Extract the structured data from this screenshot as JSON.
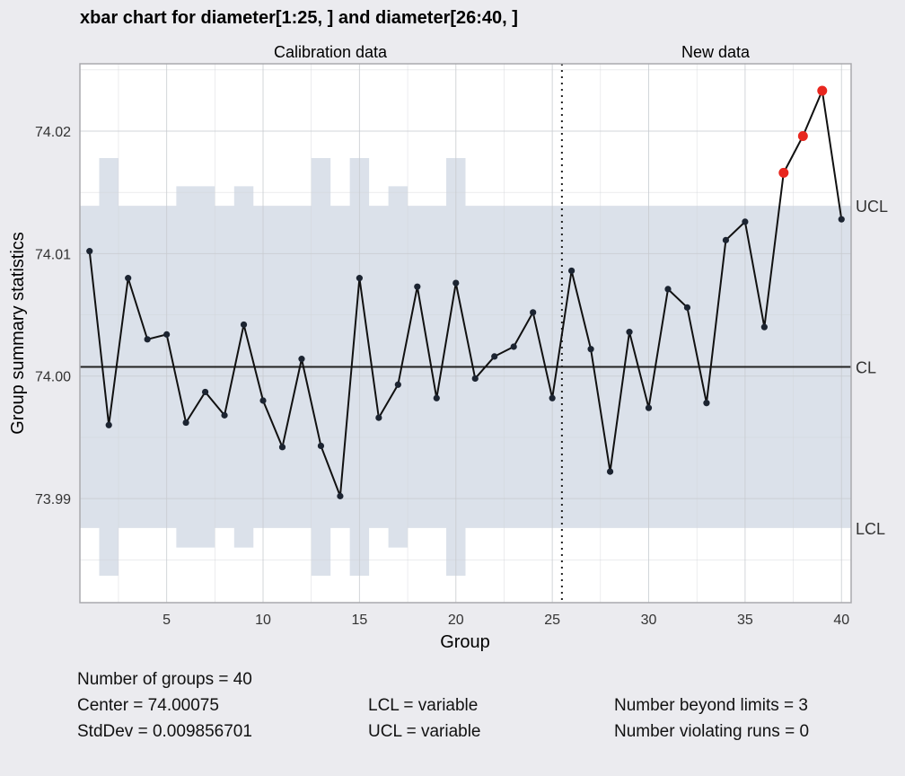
{
  "chart_data": {
    "type": "line",
    "title": "xbar chart for diameter[1:25, ] and diameter[26:40, ]",
    "xlabel": "Group",
    "ylabel": "Group summary statistics",
    "sections": [
      "Calibration data",
      "New data"
    ],
    "xlim": [
      0.5,
      40.5
    ],
    "ylim": [
      73.9815,
      74.0255
    ],
    "xticks": [
      5,
      10,
      15,
      20,
      25,
      30,
      35,
      40
    ],
    "yticks": [
      73.99,
      74.0,
      74.01,
      74.02
    ],
    "ytick_labels": [
      "73.99",
      "74.00",
      "74.01",
      "74.02"
    ],
    "calibration_groups": 25,
    "center": 74.00075,
    "limit_labels": {
      "ucl": "UCL",
      "cl": "CL",
      "lcl": "LCL"
    },
    "groups": [
      1,
      2,
      3,
      4,
      5,
      6,
      7,
      8,
      9,
      10,
      11,
      12,
      13,
      14,
      15,
      16,
      17,
      18,
      19,
      20,
      21,
      22,
      23,
      24,
      25,
      26,
      27,
      28,
      29,
      30,
      31,
      32,
      33,
      34,
      35,
      36,
      37,
      38,
      39,
      40
    ],
    "values": [
      74.0102,
      73.996,
      74.008,
      74.003,
      74.0034,
      73.9962,
      73.9987,
      73.9968,
      74.0042,
      73.998,
      73.9942,
      74.0014,
      73.9943,
      73.9902,
      74.008,
      73.9966,
      73.9993,
      74.0073,
      73.9982,
      74.0076,
      73.9998,
      74.0016,
      74.0024,
      74.0052,
      73.9982,
      74.0086,
      74.0022,
      73.9922,
      74.0036,
      73.9974,
      74.0071,
      74.0056,
      73.9978,
      74.0111,
      74.0126,
      74.004,
      74.0166,
      74.0196,
      74.0233,
      74.0128
    ],
    "ucl": [
      74.0139,
      74.0178,
      74.0139,
      74.0139,
      74.0139,
      74.0155,
      74.0155,
      74.0139,
      74.0155,
      74.0139,
      74.0139,
      74.0139,
      74.0178,
      74.0139,
      74.0178,
      74.0139,
      74.0155,
      74.0139,
      74.0139,
      74.0178,
      74.0139,
      74.0139,
      74.0139,
      74.0139,
      74.0139,
      74.0139,
      74.0139,
      74.0139,
      74.0139,
      74.0139,
      74.0139,
      74.0139,
      74.0139,
      74.0139,
      74.0139,
      74.0139,
      74.0139,
      74.0139,
      74.0139,
      74.0139
    ],
    "lcl": [
      73.9876,
      73.9837,
      73.9876,
      73.9876,
      73.9876,
      73.986,
      73.986,
      73.9876,
      73.986,
      73.9876,
      73.9876,
      73.9876,
      73.9837,
      73.9876,
      73.9837,
      73.9876,
      73.986,
      73.9876,
      73.9876,
      73.9837,
      73.9876,
      73.9876,
      73.9876,
      73.9876,
      73.9876,
      73.9876,
      73.9876,
      73.9876,
      73.9876,
      73.9876,
      73.9876,
      73.9876,
      73.9876,
      73.9876,
      73.9876,
      73.9876,
      73.9876,
      73.9876,
      73.9876,
      73.9876
    ],
    "beyond_limits": [
      37,
      38,
      39
    ],
    "colors": {
      "line": "#111111",
      "point": "#1c2431",
      "violation": "#e8271f",
      "band": "#dbe1ea",
      "center_line": "#222222",
      "panel_bg": "#ffffff",
      "page_bg": "#ebebef"
    }
  },
  "stats": {
    "groups": "Number of groups = 40",
    "center": "Center = 74.00075",
    "stddev": "StdDev = 0.009856701",
    "lcl": "LCL = variable",
    "ucl": "UCL = variable",
    "beyond": "Number beyond limits = 3",
    "runs": "Number violating runs = 0"
  }
}
